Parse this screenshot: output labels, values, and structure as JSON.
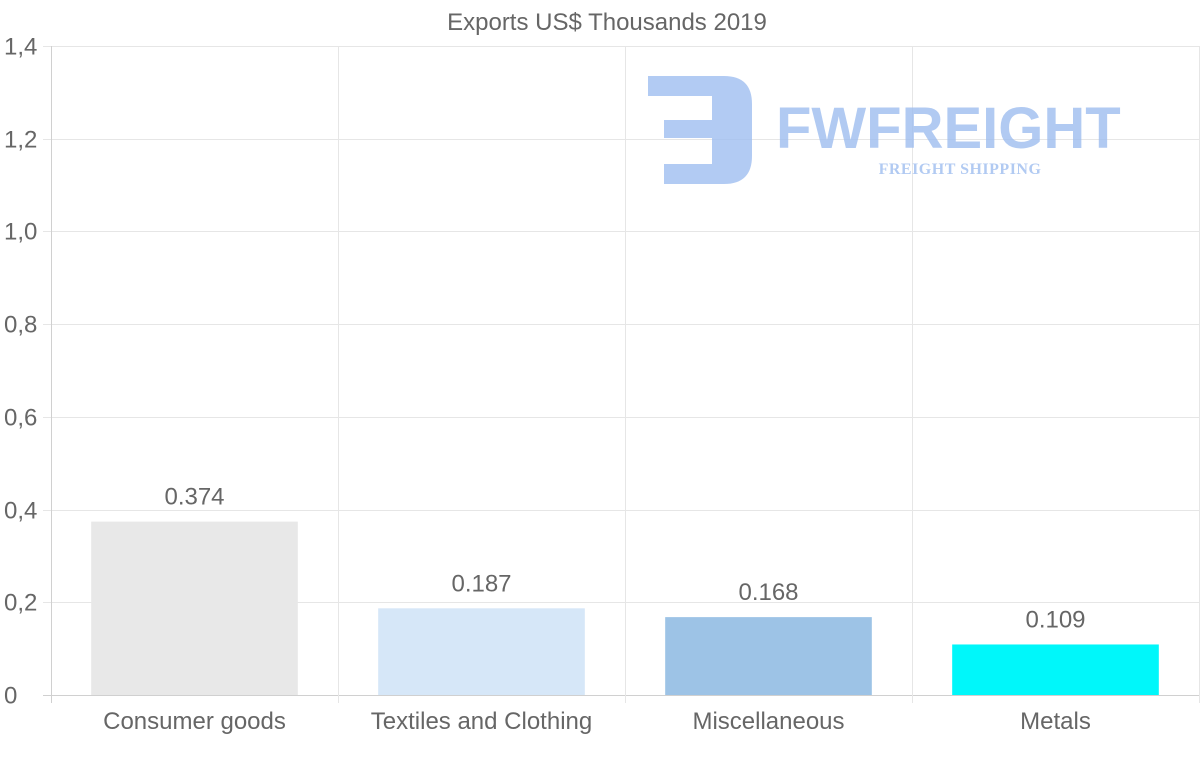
{
  "chart_data": {
    "type": "bar",
    "title": "Exports US$ Thousands 2019",
    "categories": [
      "Consumer goods",
      "Textiles and Clothing",
      "Miscellaneous",
      "Metals"
    ],
    "values": [
      0.374,
      0.187,
      0.168,
      0.109
    ],
    "value_labels": [
      "0.374",
      "0.187",
      "0.168",
      "0.109"
    ],
    "bar_colors": [
      "#e8e8e8",
      "#d6e7f8",
      "#9dc3e6",
      "#00f7fa"
    ],
    "ylim": [
      0,
      1.4
    ],
    "yticks": [
      0,
      0.2,
      0.4,
      0.6,
      0.8,
      1.0,
      1.2,
      1.4
    ],
    "ytick_labels": [
      "0",
      "0,2",
      "0,4",
      "0,6",
      "0,8",
      "1,0",
      "1,2",
      "1,4"
    ],
    "xlabel": "",
    "ylabel": "",
    "grid": true,
    "legend": "none"
  },
  "watermark": {
    "name": "FWFREIGHT",
    "tagline": "FREIGHT SHIPPING",
    "color": "#9cbcef"
  }
}
